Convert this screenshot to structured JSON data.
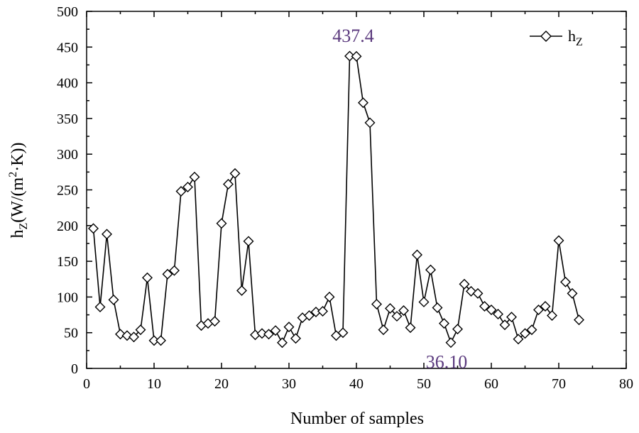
{
  "chart_data": {
    "type": "line",
    "title": "",
    "xlabel": "Number of samples",
    "ylabel": {
      "base": "h",
      "sub": "Z",
      "mid": "(W/(m",
      "sup": "2",
      "end": "·K))"
    },
    "xlim": [
      0,
      80
    ],
    "ylim": [
      0,
      500
    ],
    "xticks": [
      0,
      10,
      20,
      30,
      40,
      50,
      60,
      70,
      80
    ],
    "yticks": [
      0,
      50,
      100,
      150,
      200,
      250,
      300,
      350,
      400,
      450,
      500
    ],
    "grid": false,
    "legend": {
      "position": "top-right",
      "base": "h",
      "sub": "Z"
    },
    "series": [
      {
        "name": "hZ",
        "marker": "diamond",
        "color": "#000000",
        "x": [
          1,
          2,
          3,
          4,
          5,
          6,
          7,
          8,
          9,
          10,
          11,
          12,
          13,
          14,
          15,
          16,
          17,
          18,
          19,
          20,
          21,
          22,
          23,
          24,
          25,
          26,
          27,
          28,
          29,
          30,
          31,
          32,
          33,
          34,
          35,
          36,
          37,
          38,
          39,
          40,
          41,
          42,
          43,
          44,
          45,
          46,
          47,
          48,
          49,
          50,
          51,
          52,
          53,
          54,
          55,
          56,
          57,
          58,
          59,
          60,
          61,
          62,
          63,
          64,
          65,
          66,
          67,
          68,
          69,
          70,
          71,
          72,
          73
        ],
        "values": [
          196,
          86,
          188,
          96,
          48,
          46,
          44,
          54,
          127,
          39,
          39,
          132,
          137,
          248,
          254,
          268,
          60,
          63,
          66,
          203,
          258,
          273,
          109,
          178,
          47,
          49,
          48,
          53,
          36,
          58,
          42,
          71,
          74,
          79,
          80,
          100,
          46,
          50,
          437.4,
          437,
          372,
          344,
          90,
          54,
          84,
          73,
          81,
          57,
          159,
          93,
          138,
          85,
          63,
          36.1,
          55,
          118,
          108,
          105,
          87,
          82,
          76,
          61,
          72,
          41,
          49,
          54,
          82,
          87,
          74,
          179,
          121,
          105,
          68
        ]
      }
    ],
    "annotations": [
      {
        "text": "437.4",
        "x": 39,
        "y": 437.4,
        "placement": "above"
      },
      {
        "text": "36.10",
        "x": 54,
        "y": 36.1,
        "placement": "below"
      }
    ],
    "annotation_color": "#5b3a7e"
  }
}
